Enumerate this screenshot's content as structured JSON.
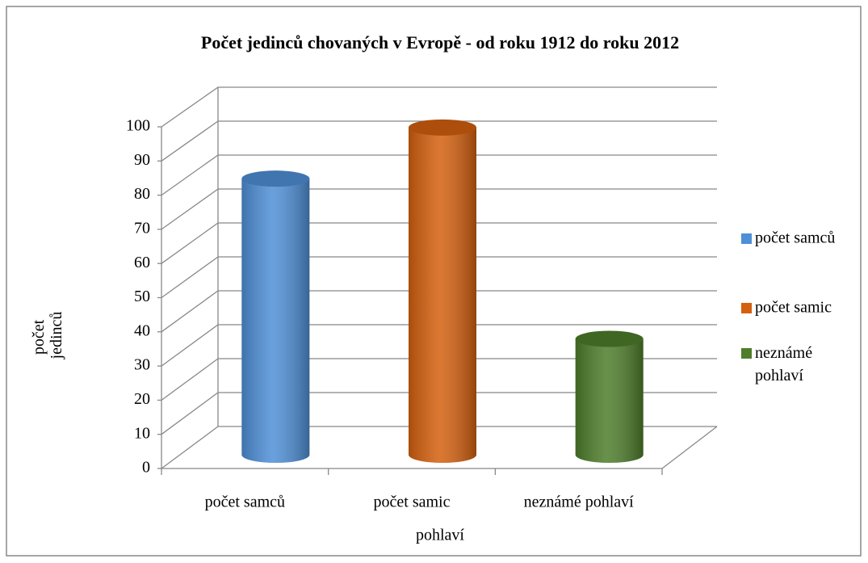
{
  "chart_data": {
    "type": "bar3d",
    "title": "Počet jedinců chovaných v Evropě - od roku 1912 do roku 2012",
    "x_label": "pohlaví",
    "y_label": "počet jedinců",
    "categories": [
      "počet samců",
      "počet samic",
      "neznámé pohlaví"
    ],
    "values": [
      81,
      96,
      34
    ],
    "colors": [
      "#4f8fd6",
      "#d4600f",
      "#4e7d2b"
    ],
    "ylim": [
      0,
      100
    ],
    "yticks": [
      0,
      10,
      20,
      30,
      40,
      50,
      60,
      70,
      80,
      90,
      100
    ],
    "grid": true,
    "legend": "right"
  }
}
